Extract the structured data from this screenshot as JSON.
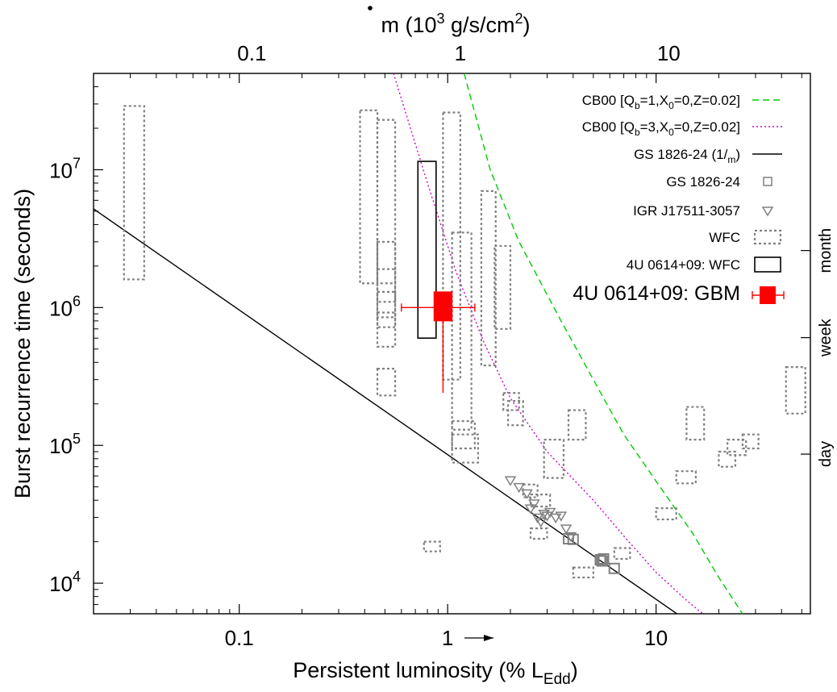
{
  "chart_data": {
    "type": "scatter",
    "xlabel": "Persistent luminosity (% L",
    "xlabel_sub": "Edd",
    "ylabel": "Burst recurrence time (seconds)",
    "top_xlabel": "(10",
    "top_xlabel_exp": "3",
    "top_xlabel_unit": " g/s/cm",
    "top_xlabel_unit_exp": "2",
    "top_xlabel_symbol": "m",
    "top_xlabel_close": ")",
    "xscale": "log",
    "yscale": "log",
    "xlim": [
      0.02,
      55
    ],
    "ylim": [
      6000,
      50000000
    ],
    "x_ticks": [
      {
        "value": 0.1,
        "label": "0.1"
      },
      {
        "value": 1,
        "label": "1"
      },
      {
        "value": 10,
        "label": "10"
      }
    ],
    "y_ticks": [
      {
        "value": 10000,
        "base": "10",
        "exp": "4"
      },
      {
        "value": 100000,
        "base": "10",
        "exp": "5"
      },
      {
        "value": 1000000,
        "base": "10",
        "exp": "6"
      },
      {
        "value": 10000000,
        "base": "10",
        "exp": "7"
      }
    ],
    "top_ticks": [
      {
        "value": 0.1,
        "label": "0.1"
      },
      {
        "value": 1,
        "label": "1"
      },
      {
        "value": 10,
        "label": "10"
      }
    ],
    "right_ticks": [
      {
        "value": 86400,
        "label": "day"
      },
      {
        "value": 604800,
        "label": "week"
      },
      {
        "value": 2592000,
        "label": "month"
      }
    ],
    "legend_position": "top-right",
    "colors": {
      "cb00_qb1": "#00cc00",
      "cb00_qb3": "#cc00cc",
      "fit": "#000000",
      "gs": "#808080",
      "wfc": "#808080",
      "gbm": "#ff0000"
    },
    "legend": [
      {
        "key": "cb00_qb1",
        "text": "CB00 [Q",
        "sub1": "b",
        "mid": "=1,X",
        "sub2": "0",
        "tail": "=0,Z=0.02]"
      },
      {
        "key": "cb00_qb3",
        "text": "CB00 [Q",
        "sub1": "b",
        "mid": "=3,X",
        "sub2": "0",
        "tail": "=0,Z=0.02]"
      },
      {
        "key": "fit",
        "text": "GS 1826-24 (1/",
        "symbol": "m",
        "tail": ")"
      },
      {
        "key": "gs",
        "text": "GS 1826-24"
      },
      {
        "key": "igr",
        "text": "IGR J17511-3057"
      },
      {
        "key": "wfc",
        "text": "WFC"
      },
      {
        "key": "wfc4u",
        "text": "4U 0614+09: WFC"
      },
      {
        "key": "gbm",
        "text": "4U 0614+09: GBM"
      }
    ],
    "annotation_arrow_label": "1",
    "series": [
      {
        "name": "CB00 [Qb=1,X0=0,Z=0.02]",
        "type": "line",
        "points": [
          [
            1.2,
            50000000
          ],
          [
            1.6,
            10000000
          ],
          [
            2.2,
            3000000
          ],
          [
            3.5,
            800000
          ],
          [
            5,
            300000
          ],
          [
            7,
            120000
          ],
          [
            10,
            55000
          ],
          [
            15,
            23000
          ],
          [
            20,
            11000
          ],
          [
            27,
            5500
          ]
        ]
      },
      {
        "name": "CB00 [Qb=3,X0=0,Z=0.02]",
        "type": "line",
        "points": [
          [
            0.55,
            50000000
          ],
          [
            0.8,
            8000000
          ],
          [
            1.1,
            1800000
          ],
          [
            1.5,
            550000
          ],
          [
            2,
            220000
          ],
          [
            3,
            90000
          ],
          [
            5,
            40000
          ],
          [
            7,
            22000
          ],
          [
            10,
            12000
          ],
          [
            14,
            7500
          ],
          [
            18,
            5500
          ]
        ]
      },
      {
        "name": "GS 1826-24 (1/m)",
        "type": "line",
        "points": [
          [
            0.02,
            5200000
          ],
          [
            13,
            5800
          ]
        ]
      },
      {
        "name": "GS 1826-24",
        "type": "scatter",
        "points": [
          [
            3.8,
            21000
          ],
          [
            4.0,
            20800
          ],
          [
            5.4,
            14800
          ],
          [
            5.6,
            15000
          ],
          [
            5.5,
            14500
          ],
          [
            6.3,
            12800
          ]
        ]
      },
      {
        "name": "IGR J17511-3057",
        "type": "scatter",
        "points": [
          [
            2.0,
            56000
          ],
          [
            2.2,
            50000
          ],
          [
            2.4,
            45000
          ],
          [
            2.6,
            38000
          ],
          [
            2.9,
            32000
          ],
          [
            3.1,
            33000
          ],
          [
            3.3,
            30000
          ],
          [
            3.5,
            31000
          ],
          [
            3.0,
            31000
          ],
          [
            2.7,
            30000
          ],
          [
            3.7,
            25000
          ],
          [
            3.9,
            22000
          ],
          [
            2.5,
            35000
          ],
          [
            2.8,
            28000
          ]
        ]
      },
      {
        "name": "WFC",
        "type": "range-box",
        "boxes": [
          {
            "x": [
              0.028,
              0.035
            ],
            "y": [
              1600000,
              29000000
            ]
          },
          {
            "x": [
              0.38,
              0.46
            ],
            "y": [
              1500000,
              27000000
            ]
          },
          {
            "x": [
              0.46,
              0.56
            ],
            "y": [
              1500000,
              23000000
            ]
          },
          {
            "x": [
              0.46,
              0.56
            ],
            "y": [
              1100000,
              3000000
            ]
          },
          {
            "x": [
              0.46,
              0.56
            ],
            "y": [
              850000,
              1900000
            ]
          },
          {
            "x": [
              0.46,
              0.56
            ],
            "y": [
              720000,
              1300000
            ]
          },
          {
            "x": [
              0.46,
              0.56
            ],
            "y": [
              520000,
              920000
            ]
          },
          {
            "x": [
              0.46,
              0.56
            ],
            "y": [
              230000,
              360000
            ]
          },
          {
            "x": [
              0.95,
              1.15
            ],
            "y": [
              300000,
              26000000
            ]
          },
          {
            "x": [
              1.05,
              1.3
            ],
            "y": [
              130000,
              3500000
            ]
          },
          {
            "x": [
              1.45,
              1.7
            ],
            "y": [
              380000,
              7000000
            ]
          },
          {
            "x": [
              1.68,
              2.0
            ],
            "y": [
              700000,
              2800000
            ]
          },
          {
            "x": [
              1.05,
              1.35
            ],
            "y": [
              95000,
              150000
            ]
          },
          {
            "x": [
              1.05,
              1.4
            ],
            "y": [
              75000,
              120000
            ]
          },
          {
            "x": [
              1.85,
              2.2
            ],
            "y": [
              180000,
              240000
            ]
          },
          {
            "x": [
              1.95,
              2.3
            ],
            "y": [
              140000,
              210000
            ]
          },
          {
            "x": [
              2.9,
              3.6
            ],
            "y": [
              58000,
              110000
            ]
          },
          {
            "x": [
              3.8,
              4.6
            ],
            "y": [
              110000,
              180000
            ]
          },
          {
            "x": [
              2.3,
              2.7
            ],
            "y": [
              42000,
              52000
            ]
          },
          {
            "x": [
              2.5,
              3.1
            ],
            "y": [
              36000,
              44000
            ]
          },
          {
            "x": [
              2.5,
              3.0
            ],
            "y": [
              21000,
              25000
            ]
          },
          {
            "x": [
              0.77,
              0.92
            ],
            "y": [
              17000,
              20000
            ]
          },
          {
            "x": [
              4.0,
              5.0
            ],
            "y": [
              11000,
              13000
            ]
          },
          {
            "x": [
              6.3,
              7.5
            ],
            "y": [
              15000,
              18000
            ]
          },
          {
            "x": [
              10,
              12.5
            ],
            "y": [
              29000,
              35000
            ]
          },
          {
            "x": [
              12.5,
              15.5
            ],
            "y": [
              53000,
              65000
            ]
          },
          {
            "x": [
              14,
              17
            ],
            "y": [
              110000,
              190000
            ]
          },
          {
            "x": [
              20,
              24
            ],
            "y": [
              70000,
              90000
            ]
          },
          {
            "x": [
              22,
              27
            ],
            "y": [
              85000,
              110000
            ]
          },
          {
            "x": [
              26,
              31
            ],
            "y": [
              95000,
              120000
            ]
          },
          {
            "x": [
              42,
              52
            ],
            "y": [
              170000,
              370000
            ]
          }
        ]
      },
      {
        "name": "4U 0614+09: WFC",
        "type": "range-box",
        "boxes": [
          {
            "x": [
              0.72,
              0.88
            ],
            "y": [
              600000,
              11500000
            ]
          }
        ]
      },
      {
        "name": "4U 0614+09: GBM",
        "type": "point-errorbar",
        "x": 0.95,
        "y": 1000000,
        "xerr": [
          0.6,
          1.35
        ],
        "yerr": [
          240000,
          1300000
        ],
        "box": {
          "x": [
            0.86,
            1.05
          ],
          "y": [
            800000,
            1300000
          ]
        }
      }
    ]
  }
}
